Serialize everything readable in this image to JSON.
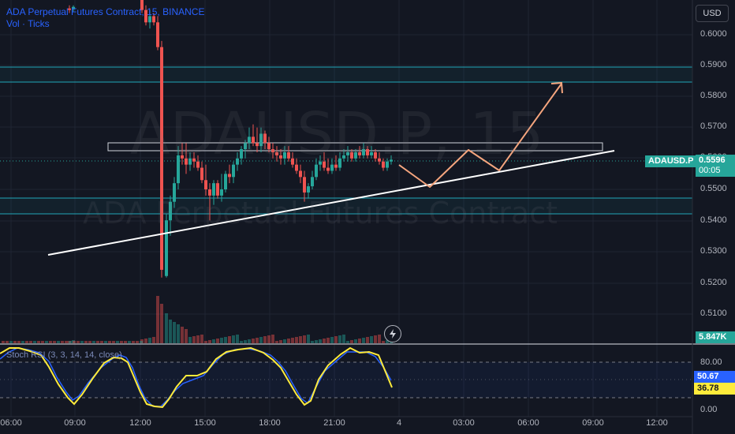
{
  "header": {
    "title": "ADA Perpetual Futures Contract, 15, BINANCE",
    "volume_label": "Vol · Ticks"
  },
  "watermark": {
    "ticker": "ADAUSD.P, 15",
    "name": "ADA Perpetual Futures Contract"
  },
  "currency": "USD",
  "price_axis": [
    "0.6000",
    "0.5900",
    "0.5800",
    "0.5700",
    "0.5600",
    "0.5500",
    "0.5400",
    "0.5300",
    "0.5200",
    "0.5100"
  ],
  "time_axis": [
    "06:00",
    "09:00",
    "12:00",
    "15:00",
    "18:00",
    "21:00",
    "4",
    "03:00",
    "06:00",
    "09:00",
    "12:00"
  ],
  "last_price": {
    "symbol": "ADAUSD.P",
    "price": "0.5596",
    "countdown": "00:05"
  },
  "volume_value": "5.847K",
  "oscillator": {
    "label": "Stoch RSI (3, 3, 14, 14, close)",
    "levels": [
      "80.00",
      "20.00",
      "0.00"
    ],
    "k_value": "50.67",
    "d_value": "36.78"
  },
  "colors": {
    "background": "#131722",
    "up": "#26a69a",
    "down": "#ef5350",
    "zone_line": "#22a6b8",
    "drawing_line": "#ffffff",
    "projection": "#f5a57e",
    "k_line": "#2962ff",
    "d_line": "#ffeb3b"
  },
  "icons": {
    "replay": "lightning-icon"
  }
}
